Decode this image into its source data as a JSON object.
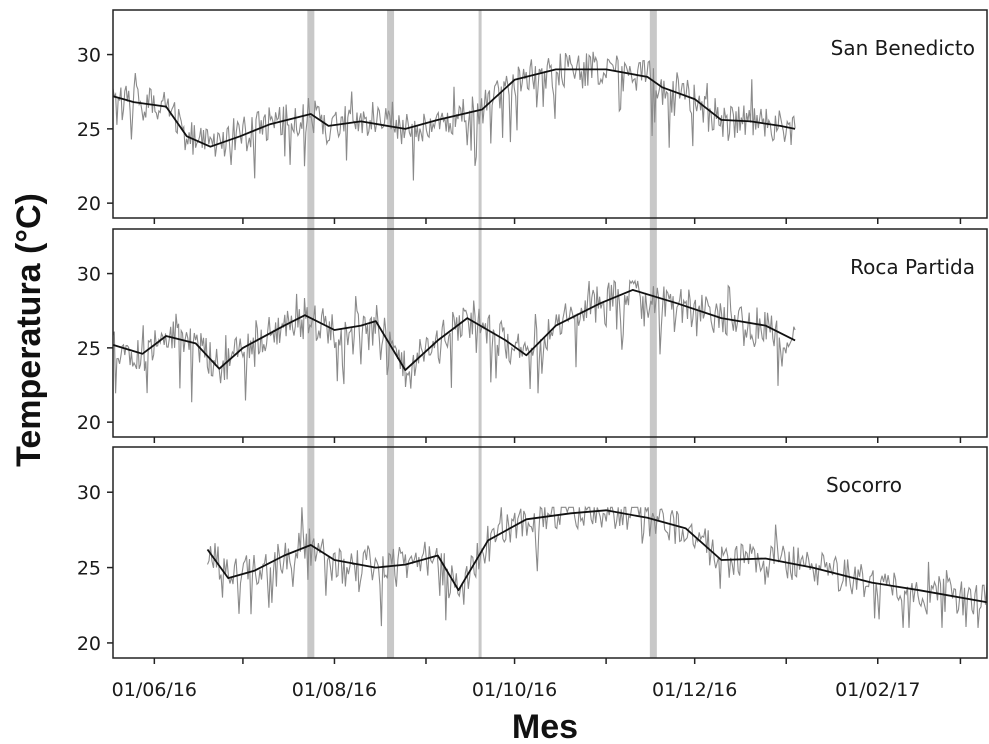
{
  "chart_data": {
    "type": "line",
    "xlabel": "Mes",
    "ylabel": "Temperatura (°C)",
    "x_ticks": [
      "01/06/16",
      "01/08/16",
      "01/10/16",
      "01/12/16",
      "01/02/17"
    ],
    "x_range": [
      "2016-05-18",
      "2017-03-10"
    ],
    "y_ticks": [
      20,
      25,
      30
    ],
    "ylim": [
      19,
      33
    ],
    "shared_vertical_bands": [
      "2016-07-24",
      "2016-08-20",
      "2016-09-20",
      "2016-11-17"
    ],
    "colors": {
      "raw_series": "#8a8a8a",
      "smoothed_series": "#111111",
      "bands": "#c8c8c8",
      "axes": "#222222"
    },
    "panels": [
      {
        "title": "San Benedicto",
        "raw_min_y": 21,
        "raw_max_y": 31,
        "smoothed": [
          {
            "x": "2016-05-18",
            "y": 27.2
          },
          {
            "x": "2016-05-25",
            "y": 26.8
          },
          {
            "x": "2016-06-05",
            "y": 26.5
          },
          {
            "x": "2016-06-12",
            "y": 24.5
          },
          {
            "x": "2016-06-20",
            "y": 23.8
          },
          {
            "x": "2016-06-30",
            "y": 24.5
          },
          {
            "x": "2016-07-10",
            "y": 25.3
          },
          {
            "x": "2016-07-24",
            "y": 26.0
          },
          {
            "x": "2016-07-30",
            "y": 25.2
          },
          {
            "x": "2016-08-10",
            "y": 25.5
          },
          {
            "x": "2016-08-25",
            "y": 25.0
          },
          {
            "x": "2016-09-05",
            "y": 25.6
          },
          {
            "x": "2016-09-20",
            "y": 26.3
          },
          {
            "x": "2016-10-01",
            "y": 28.3
          },
          {
            "x": "2016-10-15",
            "y": 29.0
          },
          {
            "x": "2016-11-01",
            "y": 29.0
          },
          {
            "x": "2016-11-15",
            "y": 28.5
          },
          {
            "x": "2016-11-20",
            "y": 27.8
          },
          {
            "x": "2016-12-01",
            "y": 27.0
          },
          {
            "x": "2016-12-10",
            "y": 25.6
          },
          {
            "x": "2016-12-20",
            "y": 25.5
          },
          {
            "x": "2016-12-30",
            "y": 25.2
          },
          {
            "x": "2017-01-04",
            "y": 25.0
          }
        ]
      },
      {
        "title": "Roca Partida",
        "raw_min_y": 21,
        "raw_max_y": 29.5,
        "smoothed": [
          {
            "x": "2016-05-18",
            "y": 25.2
          },
          {
            "x": "2016-05-28",
            "y": 24.6
          },
          {
            "x": "2016-06-05",
            "y": 25.8
          },
          {
            "x": "2016-06-15",
            "y": 25.3
          },
          {
            "x": "2016-06-23",
            "y": 23.6
          },
          {
            "x": "2016-07-01",
            "y": 25.0
          },
          {
            "x": "2016-07-15",
            "y": 26.5
          },
          {
            "x": "2016-07-22",
            "y": 27.2
          },
          {
            "x": "2016-08-01",
            "y": 26.2
          },
          {
            "x": "2016-08-10",
            "y": 26.5
          },
          {
            "x": "2016-08-15",
            "y": 26.8
          },
          {
            "x": "2016-08-25",
            "y": 23.5
          },
          {
            "x": "2016-09-05",
            "y": 25.5
          },
          {
            "x": "2016-09-15",
            "y": 27.0
          },
          {
            "x": "2016-09-28",
            "y": 25.5
          },
          {
            "x": "2016-10-05",
            "y": 24.5
          },
          {
            "x": "2016-10-15",
            "y": 26.5
          },
          {
            "x": "2016-10-30",
            "y": 28.0
          },
          {
            "x": "2016-11-10",
            "y": 28.9
          },
          {
            "x": "2016-11-25",
            "y": 28.0
          },
          {
            "x": "2016-12-10",
            "y": 27.0
          },
          {
            "x": "2016-12-25",
            "y": 26.5
          },
          {
            "x": "2017-01-04",
            "y": 25.5
          }
        ]
      },
      {
        "title": "Socorro",
        "raw_min_y": 21,
        "raw_max_y": 29,
        "smoothed": [
          {
            "x": "2016-06-19",
            "y": 26.2
          },
          {
            "x": "2016-06-26",
            "y": 24.3
          },
          {
            "x": "2016-07-05",
            "y": 24.8
          },
          {
            "x": "2016-07-15",
            "y": 25.8
          },
          {
            "x": "2016-07-24",
            "y": 26.5
          },
          {
            "x": "2016-08-01",
            "y": 25.5
          },
          {
            "x": "2016-08-15",
            "y": 25.0
          },
          {
            "x": "2016-08-25",
            "y": 25.2
          },
          {
            "x": "2016-09-05",
            "y": 25.8
          },
          {
            "x": "2016-09-12",
            "y": 23.5
          },
          {
            "x": "2016-09-22",
            "y": 26.8
          },
          {
            "x": "2016-10-05",
            "y": 28.2
          },
          {
            "x": "2016-10-20",
            "y": 28.6
          },
          {
            "x": "2016-11-01",
            "y": 28.8
          },
          {
            "x": "2016-11-15",
            "y": 28.3
          },
          {
            "x": "2016-11-28",
            "y": 27.6
          },
          {
            "x": "2016-12-10",
            "y": 25.5
          },
          {
            "x": "2016-12-25",
            "y": 25.6
          },
          {
            "x": "2017-01-10",
            "y": 25.0
          },
          {
            "x": "2017-01-30",
            "y": 24.0
          },
          {
            "x": "2017-02-15",
            "y": 23.5
          },
          {
            "x": "2017-03-10",
            "y": 22.7
          }
        ]
      }
    ]
  }
}
